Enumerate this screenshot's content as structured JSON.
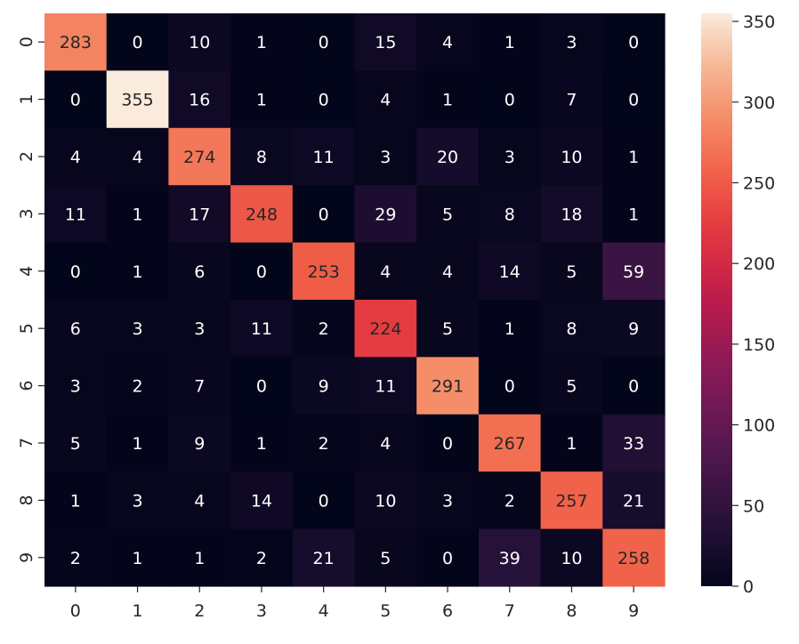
{
  "chart_data": {
    "type": "heatmap",
    "title": "",
    "xlabel": "",
    "ylabel": "",
    "x_categories": [
      "0",
      "1",
      "2",
      "3",
      "4",
      "5",
      "6",
      "7",
      "8",
      "9"
    ],
    "y_categories": [
      "0",
      "1",
      "2",
      "3",
      "4",
      "5",
      "6",
      "7",
      "8",
      "9"
    ],
    "values": [
      [
        283,
        0,
        10,
        1,
        0,
        15,
        4,
        1,
        3,
        0
      ],
      [
        0,
        355,
        16,
        1,
        0,
        4,
        1,
        0,
        7,
        0
      ],
      [
        4,
        4,
        274,
        8,
        11,
        3,
        20,
        3,
        10,
        1
      ],
      [
        11,
        1,
        17,
        248,
        0,
        29,
        5,
        8,
        18,
        1
      ],
      [
        0,
        1,
        6,
        0,
        253,
        4,
        4,
        14,
        5,
        59
      ],
      [
        6,
        3,
        3,
        11,
        2,
        224,
        5,
        1,
        8,
        9
      ],
      [
        3,
        2,
        7,
        0,
        9,
        11,
        291,
        0,
        5,
        0
      ],
      [
        5,
        1,
        9,
        1,
        2,
        4,
        0,
        267,
        1,
        33
      ],
      [
        1,
        3,
        4,
        14,
        0,
        10,
        3,
        2,
        257,
        21
      ],
      [
        2,
        1,
        1,
        2,
        21,
        5,
        0,
        39,
        10,
        258
      ]
    ],
    "colormap": "rocket",
    "colorbar": {
      "vmin": 0,
      "vmax": 355,
      "ticks": [
        0,
        50,
        100,
        150,
        200,
        250,
        300,
        350
      ]
    },
    "grid": false,
    "y_tick_rotation": "vertical"
  }
}
